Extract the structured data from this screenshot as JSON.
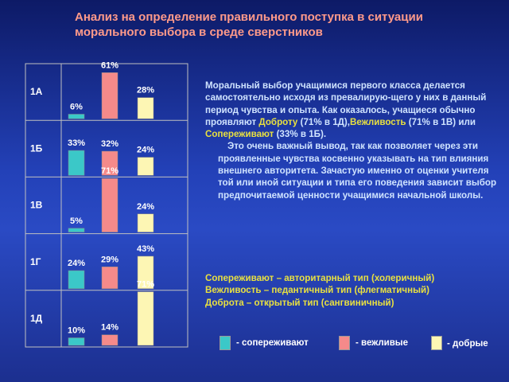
{
  "title": "Анализ на определение правильного поступка в ситуации морального выбора в среде сверстников",
  "chart_data": {
    "type": "bar",
    "categories": [
      "1А",
      "1Б",
      "1В",
      "1Г",
      "1Д"
    ],
    "series": [
      {
        "name": "- сопереживают",
        "color": "#3bc8c8",
        "values": [
          6,
          33,
          5,
          24,
          10
        ]
      },
      {
        "name": "- вежливые",
        "color": "#f58a8a",
        "values": [
          61,
          32,
          71,
          29,
          14
        ]
      },
      {
        "name": "- добрые",
        "color": "#fdf6b4",
        "values": [
          28,
          24,
          24,
          43,
          71
        ]
      }
    ],
    "value_labels": [
      [
        "6%",
        "61%",
        "28%"
      ],
      [
        "33%",
        "32%",
        "24%"
      ],
      [
        "5%",
        "71%",
        "24%"
      ],
      [
        "24%",
        "29%",
        "43%"
      ],
      [
        "10%",
        "14%",
        "71%"
      ]
    ],
    "grid": true,
    "legend": "bottom-right"
  },
  "description": {
    "p1": "Моральный выбор учащимися первого класса делается самостоятельно исходя из превалирую-щего у них в данный период чувства и опыта. Как оказалось, учащиеся обычно проявляют",
    "kw_doброта": "Доброту",
    "pct1": " (71% в 1Д),",
    "kw_vezh": "Вежливость",
    "pct2": " (71% в 1В) или",
    "kw_sop": "Сопереживают",
    "pct3": " (33% в 1Б).",
    "p2": "Это очень важный вывод, так как позволяет через эти проявленные чувства косвенно указывать на тип влияния внешнего авторитета. Зачастую именно от оценки учителя той или иной ситуации и типа его поведения зависит выбор предпочитаемой ценности учащимися начальной школы."
  },
  "types": [
    "Сопереживают – авторитарный тип (холеричный)",
    "Вежливость – педантичный тип (флегматичный)",
    "Доброта – открытый тип (сангвиничный)"
  ]
}
